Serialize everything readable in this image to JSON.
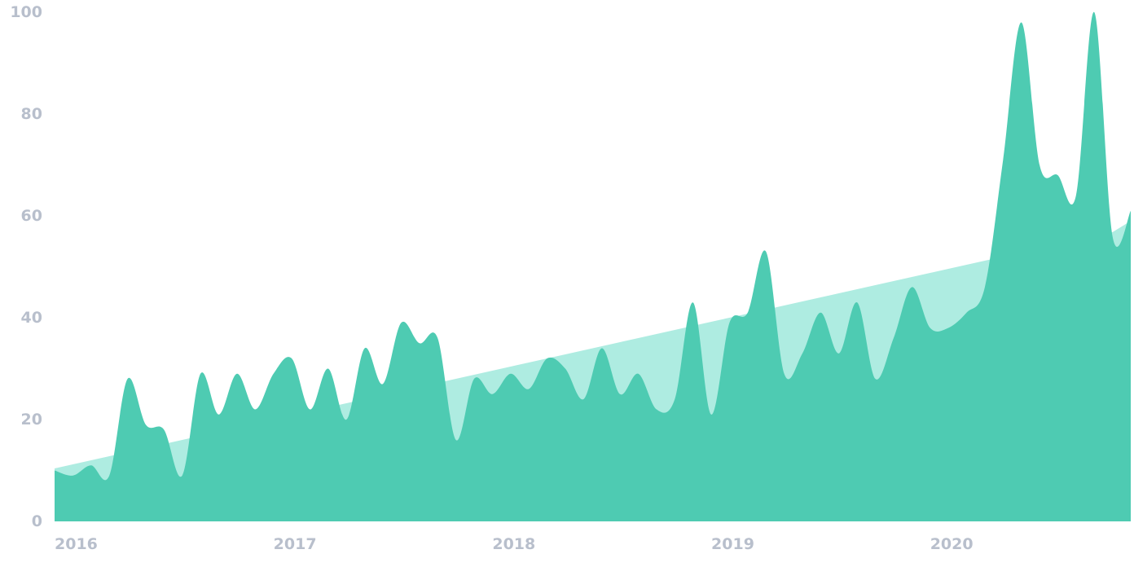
{
  "chart_data": {
    "type": "area",
    "title": "",
    "xlabel": "",
    "ylabel": "",
    "xlim": [
      "2016-01",
      "2020-12"
    ],
    "ylim": [
      0,
      100
    ],
    "grid": false,
    "legend": "none",
    "y_ticks": [
      "0",
      "20",
      "40",
      "60",
      "80",
      "100"
    ],
    "x_ticks": [
      "2016",
      "2017",
      "2018",
      "2019",
      "2020"
    ],
    "x": [
      "2016-01",
      "2016-02",
      "2016-03",
      "2016-04",
      "2016-05",
      "2016-06",
      "2016-07",
      "2016-08",
      "2016-09",
      "2016-10",
      "2016-11",
      "2016-12",
      "2017-01",
      "2017-02",
      "2017-03",
      "2017-04",
      "2017-05",
      "2017-06",
      "2017-07",
      "2017-08",
      "2017-09",
      "2017-10",
      "2017-11",
      "2017-12",
      "2018-01",
      "2018-02",
      "2018-03",
      "2018-04",
      "2018-05",
      "2018-06",
      "2018-07",
      "2018-08",
      "2018-09",
      "2018-10",
      "2018-11",
      "2018-12",
      "2019-01",
      "2019-02",
      "2019-03",
      "2019-04",
      "2019-05",
      "2019-06",
      "2019-07",
      "2019-08",
      "2019-09",
      "2019-10",
      "2019-11",
      "2019-12",
      "2020-01",
      "2020-02",
      "2020-03",
      "2020-04",
      "2020-05",
      "2020-06",
      "2020-07",
      "2020-08",
      "2020-09",
      "2020-10",
      "2020-11",
      "2020-12"
    ],
    "series": [
      {
        "values": [
          10,
          9,
          11,
          9,
          28,
          19,
          18,
          9,
          29,
          21,
          29,
          22,
          29,
          32,
          22,
          30,
          20,
          34,
          27,
          39,
          35,
          36,
          16,
          28,
          25,
          29,
          26,
          32,
          30,
          24,
          34,
          25,
          29,
          22,
          24,
          43,
          21,
          39,
          41,
          53,
          29,
          33,
          41,
          33,
          43,
          28,
          36,
          46,
          38,
          38,
          41,
          46,
          71,
          98,
          70,
          68,
          64,
          100,
          56,
          61
        ]
      },
      {
        "values": [
          10.4,
          11.2,
          12.0,
          12.8,
          13.6,
          14.4,
          15.2,
          16.0,
          16.8,
          17.6,
          18.4,
          19.2,
          20.0,
          20.8,
          21.6,
          22.4,
          23.2,
          24.0,
          24.8,
          25.6,
          26.4,
          27.2,
          28.0,
          28.8,
          29.6,
          30.4,
          31.2,
          32.0,
          32.8,
          33.6,
          34.4,
          35.2,
          36.0,
          36.8,
          37.6,
          38.4,
          39.2,
          40.0,
          40.8,
          41.6,
          42.4,
          43.2,
          44.0,
          44.8,
          45.6,
          46.4,
          47.2,
          48.0,
          48.8,
          49.6,
          50.4,
          51.2,
          52.0,
          52.8,
          53.6,
          54.4,
          55.2,
          56.0,
          56.8,
          59.0
        ]
      }
    ],
    "colors": {
      "series": "#4ecbb2",
      "trend": "#aeece1",
      "tick_text": "#b8bfcc"
    }
  }
}
